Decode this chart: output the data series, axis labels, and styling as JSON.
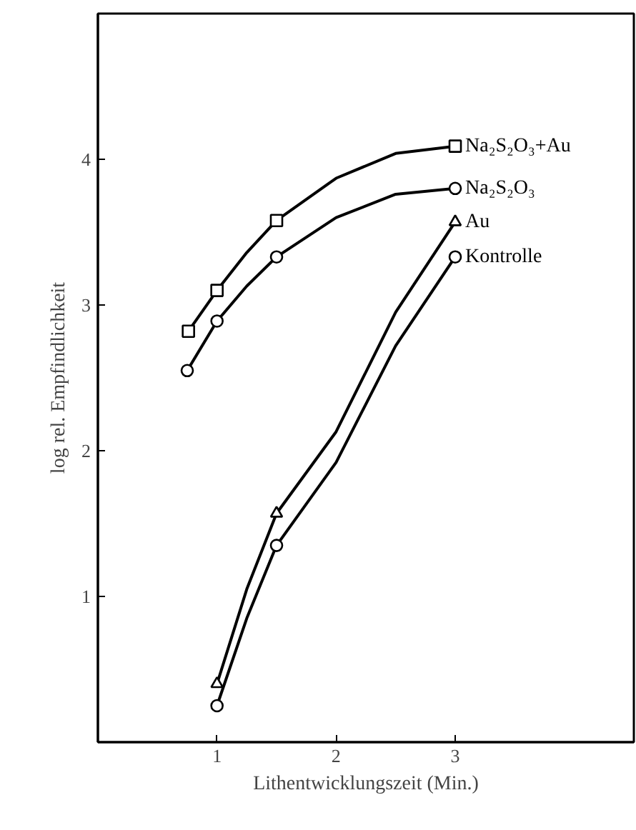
{
  "chart_data": {
    "type": "line",
    "xlabel": "Lithentwicklungszeit (Min.)",
    "ylabel": "log rel. Empfindlichkeit",
    "xlim": [
      0,
      4.5
    ],
    "ylim": [
      0,
      5
    ],
    "xticks": [
      1,
      2,
      3
    ],
    "yticks": [
      1,
      2,
      3,
      4
    ],
    "grid": false,
    "line_style": "solid",
    "marker": "none",
    "series": [
      {
        "name": "Na₂S₂O₃+Au",
        "color": "#000000",
        "x": [
          0.76,
          1.0,
          1.25,
          1.5,
          2.0,
          2.5,
          3.0
        ],
        "values": [
          2.82,
          3.1,
          3.36,
          3.58,
          3.87,
          4.04,
          4.09
        ]
      },
      {
        "name": "Na₂S₂O₃",
        "color": "#000000",
        "x": [
          0.75,
          1.0,
          1.25,
          1.5,
          2.0,
          2.5,
          3.0
        ],
        "values": [
          2.55,
          2.89,
          3.13,
          3.33,
          3.6,
          3.76,
          3.8
        ]
      },
      {
        "name": "Au",
        "color": "#000000",
        "x": [
          1.0,
          1.25,
          1.5,
          2.0,
          2.5,
          3.0
        ],
        "values": [
          0.4,
          1.05,
          1.57,
          2.13,
          2.95,
          3.57
        ]
      },
      {
        "name": "Kontrolle",
        "color": "#000000",
        "x": [
          1.0,
          1.25,
          1.5,
          2.0,
          2.5,
          3.0
        ],
        "values": [
          0.25,
          0.85,
          1.35,
          1.92,
          2.72,
          3.33
        ]
      },
      {
        "type": "scatter",
        "color": "#000000",
        "marker": "square",
        "x": [
          0.76,
          1.0,
          1.5,
          3.0
        ],
        "values": [
          2.82,
          3.1,
          3.58,
          4.09
        ]
      },
      {
        "type": "scatter",
        "color": "#000000",
        "marker": "circle",
        "x": [
          0.75,
          1.0,
          1.5,
          3.0
        ],
        "values": [
          2.55,
          2.89,
          3.33,
          3.8
        ]
      },
      {
        "type": "scatter",
        "color": "#000000",
        "marker": "triangle",
        "x": [
          1.0,
          1.5,
          3.0
        ],
        "values": [
          0.4,
          1.57,
          3.57
        ]
      },
      {
        "type": "scatter",
        "color": "#000000",
        "marker": "circle",
        "x": [
          1.0,
          1.5,
          3.0
        ],
        "values": [
          0.25,
          1.35,
          3.33
        ]
      }
    ]
  }
}
